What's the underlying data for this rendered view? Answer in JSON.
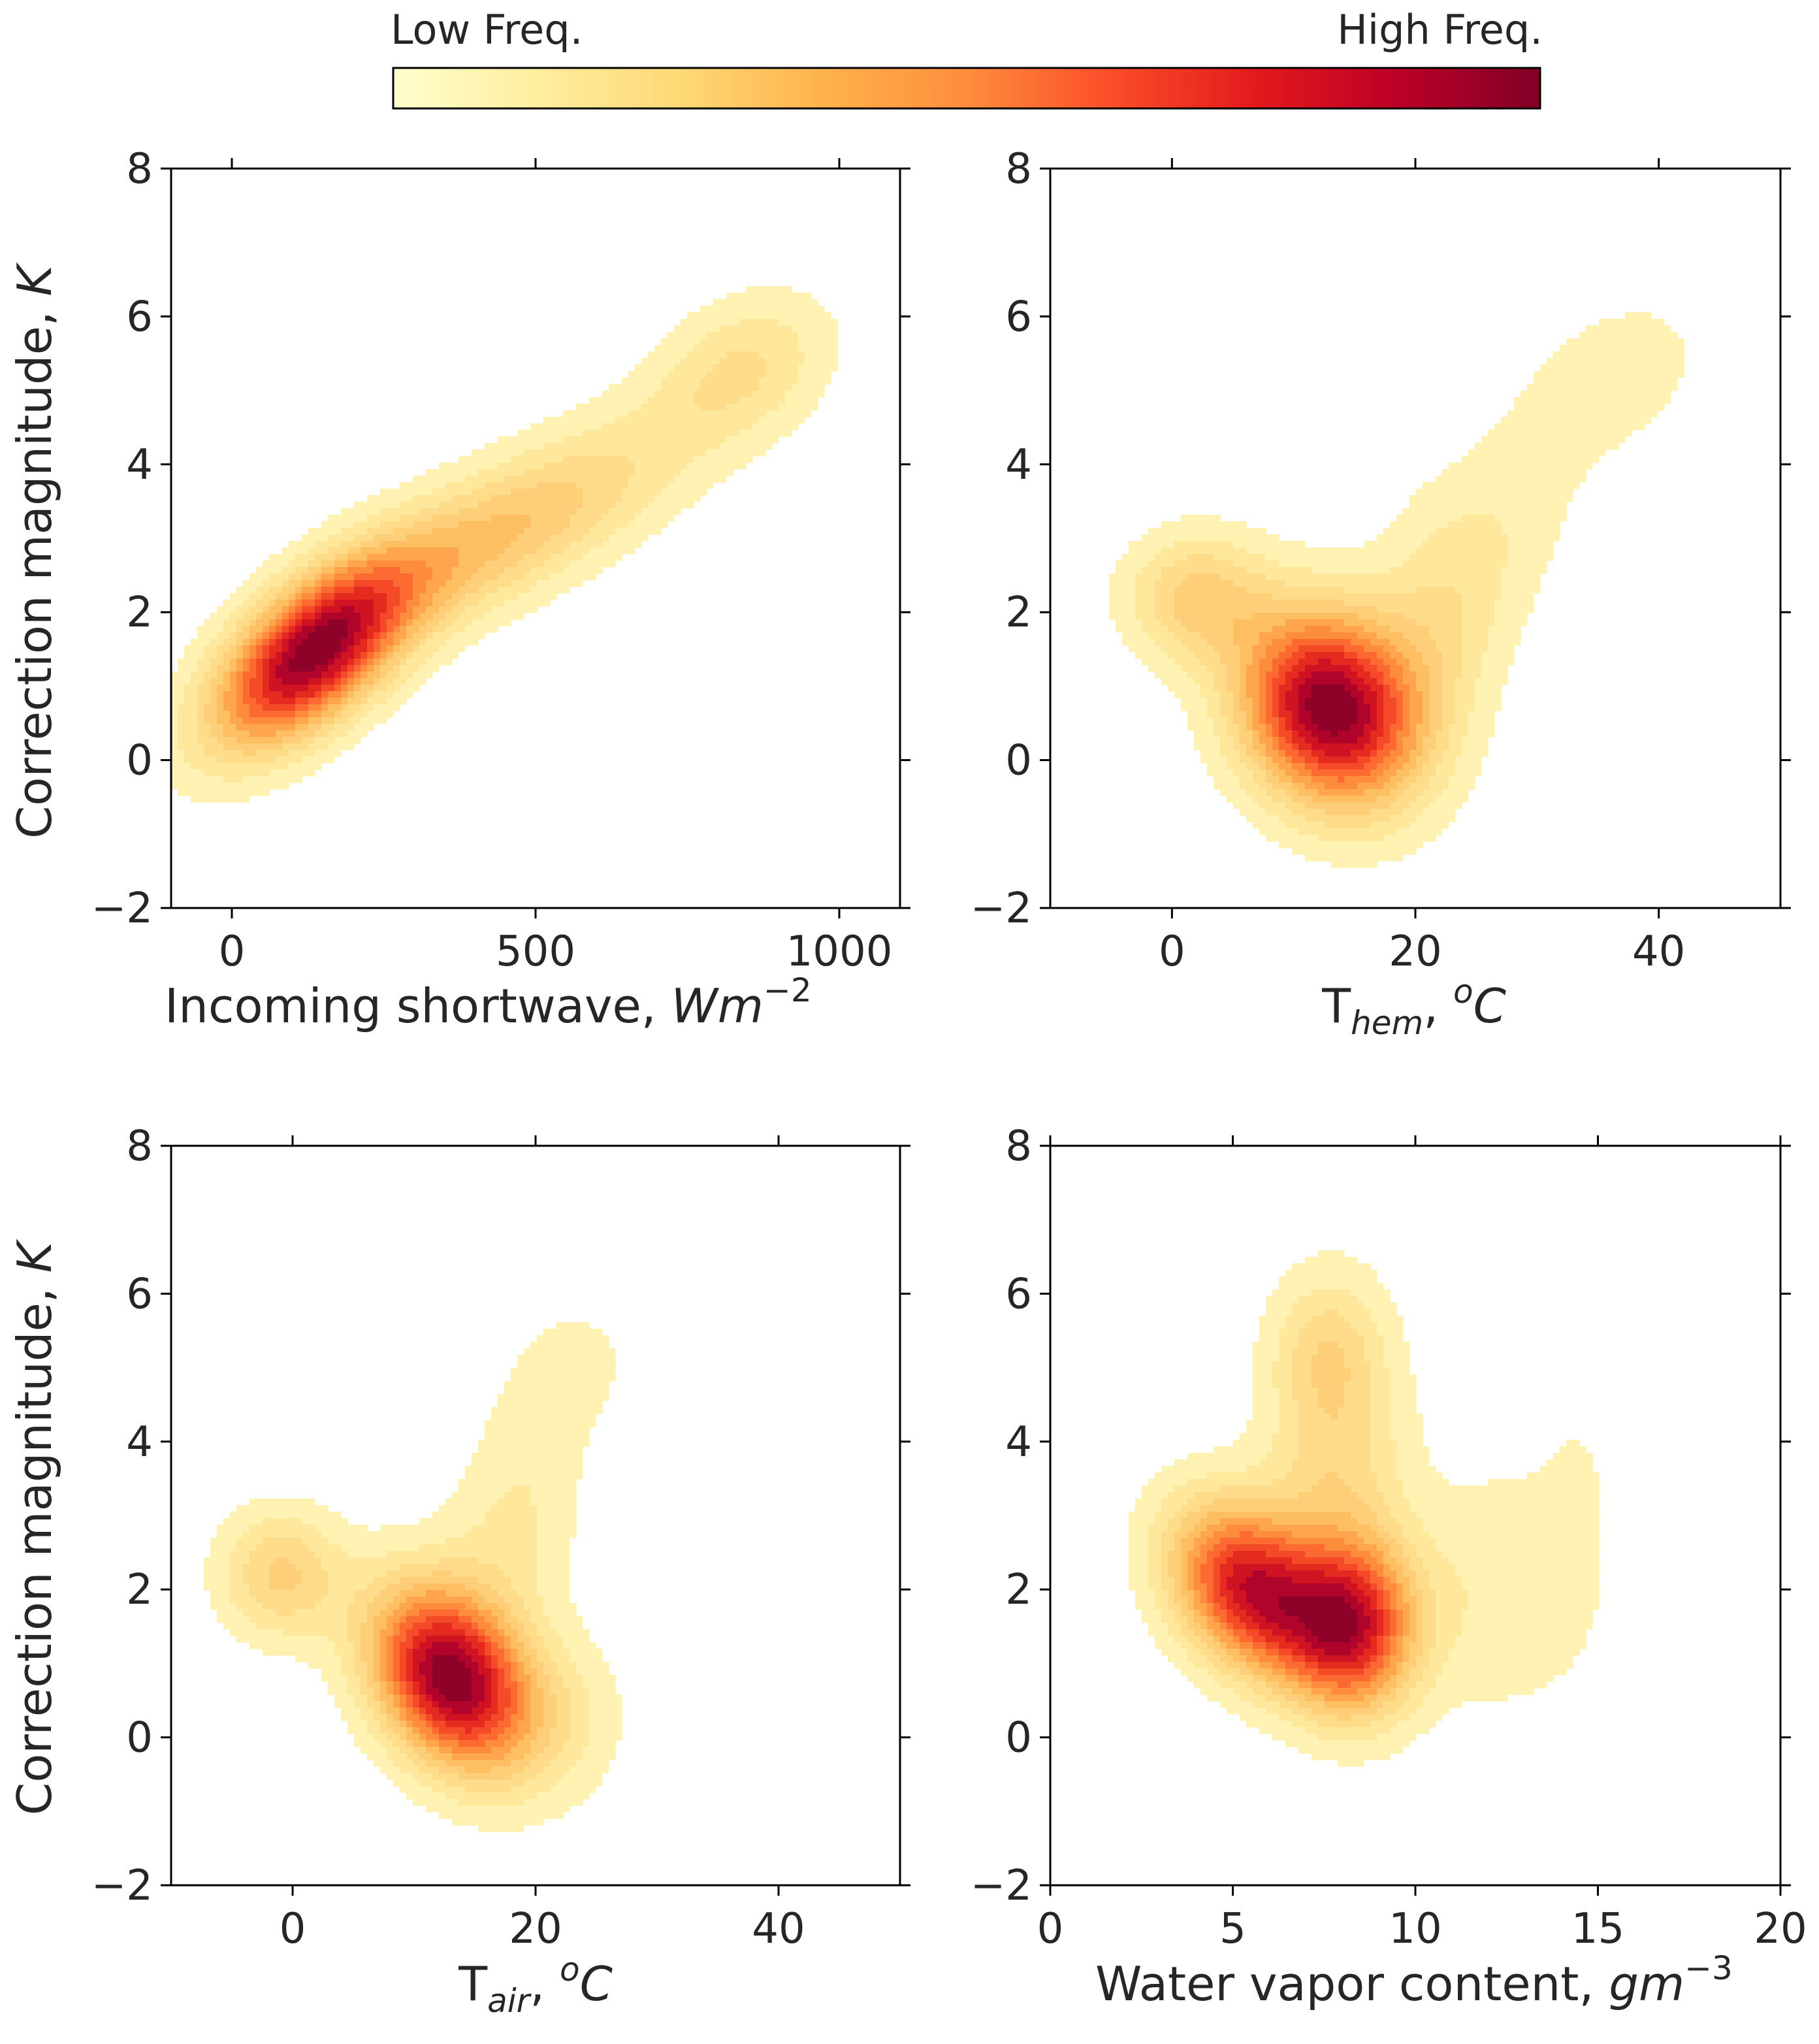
{
  "colorbar": {
    "low_label": "Low Freq.",
    "high_label": "High Freq.",
    "colors": [
      "#ffffcc",
      "#ffeda0",
      "#fed976",
      "#feb24c",
      "#fd8d3c",
      "#fc4e2a",
      "#e31a1c",
      "#bd0026",
      "#800026"
    ]
  },
  "level_colors": [
    "#fff2b3",
    "#ffe79c",
    "#fedc8a",
    "#fecf78",
    "#febf62",
    "#fea54d",
    "#fd8c3c",
    "#fc6a31",
    "#f54a27",
    "#e52a20",
    "#cf1323",
    "#b0042a",
    "#8e0128"
  ],
  "chart_data": [
    {
      "type": "kde_density",
      "title": "",
      "xlabel": "Incoming shortwave, ",
      "xlabel_italic": "Wm",
      "xlabel_sup": "−2",
      "ylabel": "Correction magnitude, ",
      "ylabel_italic": "K",
      "xlim": [
        -100,
        1100
      ],
      "ylim": [
        -2,
        8
      ],
      "xticks": [
        0,
        500,
        1000
      ],
      "xtick_labels": [
        "0",
        "500",
        "1000"
      ],
      "yticks": [
        -2,
        0,
        2,
        4,
        6,
        8
      ],
      "ytick_labels": [
        "−2",
        "0",
        "2",
        "4",
        "6",
        "8"
      ],
      "density_components": [
        {
          "x": 130,
          "y": 1.4,
          "sx": 110,
          "sy": 0.85,
          "rho": 0.6,
          "w": 1.0
        },
        {
          "x": 380,
          "y": 2.8,
          "sx": 180,
          "sy": 0.9,
          "rho": 0.7,
          "w": 0.35
        },
        {
          "x": 840,
          "y": 5.3,
          "sx": 100,
          "sy": 0.7,
          "rho": 0.3,
          "w": 0.22
        },
        {
          "x": 600,
          "y": 3.8,
          "sx": 160,
          "sy": 0.9,
          "rho": 0.6,
          "w": 0.12
        }
      ]
    },
    {
      "type": "kde_density",
      "title": "",
      "xlabel": "T",
      "xlabel_sub": "hem",
      "xlabel_tail": ", ",
      "xlabel_sup_italic": "o",
      "xlabel_italic": "C",
      "ylabel": "",
      "xlim": [
        -10,
        50
      ],
      "ylim": [
        -2,
        8
      ],
      "xticks": [
        0,
        20,
        40
      ],
      "xtick_labels": [
        "0",
        "20",
        "40"
      ],
      "yticks": [
        -2,
        0,
        2,
        4,
        6,
        8
      ],
      "ytick_labels": [
        "−2",
        "0",
        "2",
        "4",
        "6",
        "8"
      ],
      "density_components": [
        {
          "x": 13,
          "y": 0.7,
          "sx": 5,
          "sy": 0.9,
          "rho": -0.15,
          "w": 1.0
        },
        {
          "x": 2,
          "y": 2.2,
          "sx": 4,
          "sy": 0.6,
          "rho": 0.0,
          "w": 0.3
        },
        {
          "x": 22,
          "y": 2.0,
          "sx": 4,
          "sy": 1.2,
          "rho": 0.2,
          "w": 0.18
        },
        {
          "x": 37,
          "y": 5.2,
          "sx": 5,
          "sy": 0.8,
          "rho": 0.3,
          "w": 0.1
        },
        {
          "x": 29,
          "y": 3.5,
          "sx": 4,
          "sy": 1.2,
          "rho": 0.4,
          "w": 0.08
        }
      ]
    },
    {
      "type": "kde_density",
      "title": "",
      "xlabel": "T",
      "xlabel_sub": "air",
      "xlabel_tail": ", ",
      "xlabel_sup_italic": "o",
      "xlabel_italic": "C",
      "ylabel": "Correction magnitude, ",
      "ylabel_italic": "K",
      "xlim": [
        -10,
        50
      ],
      "ylim": [
        -2,
        8
      ],
      "xticks": [
        0,
        20,
        40
      ],
      "xtick_labels": [
        "0",
        "20",
        "40"
      ],
      "yticks": [
        -2,
        0,
        2,
        4,
        6,
        8
      ],
      "ytick_labels": [
        "−2",
        "0",
        "2",
        "4",
        "6",
        "8"
      ],
      "density_components": [
        {
          "x": 13,
          "y": 0.8,
          "sx": 4.5,
          "sy": 0.85,
          "rho": -0.3,
          "w": 1.0
        },
        {
          "x": -1,
          "y": 2.2,
          "sx": 3.5,
          "sy": 0.6,
          "rho": 0.0,
          "w": 0.3
        },
        {
          "x": 18,
          "y": 2.8,
          "sx": 4,
          "sy": 1.2,
          "rho": 0.3,
          "w": 0.15
        },
        {
          "x": 23,
          "y": 5.0,
          "sx": 4,
          "sy": 0.7,
          "rho": 0.2,
          "w": 0.08
        },
        {
          "x": 22,
          "y": 0.3,
          "sx": 4,
          "sy": 0.8,
          "rho": 0.0,
          "w": 0.12
        }
      ]
    },
    {
      "type": "kde_density",
      "title": "",
      "xlabel": "Water vapor content, ",
      "xlabel_italic": "gm",
      "xlabel_sup": "−3",
      "ylabel": "",
      "xlim": [
        0,
        20
      ],
      "ylim": [
        -2,
        8
      ],
      "xticks": [
        0,
        5,
        10,
        15,
        20
      ],
      "xtick_labels": [
        "0",
        "5",
        "10",
        "15",
        "20"
      ],
      "yticks": [
        -2,
        0,
        2,
        4,
        6,
        8
      ],
      "ytick_labels": [
        "−2",
        "0",
        "2",
        "4",
        "6",
        "8"
      ],
      "density_components": [
        {
          "x": 5.5,
          "y": 2.0,
          "sx": 1.5,
          "sy": 0.8,
          "rho": -0.3,
          "w": 1.0
        },
        {
          "x": 8.3,
          "y": 1.5,
          "sx": 1.2,
          "sy": 0.8,
          "rho": 0.0,
          "w": 0.9
        },
        {
          "x": 7.8,
          "y": 4.0,
          "sx": 1.3,
          "sy": 1.4,
          "rho": 0.0,
          "w": 0.3
        },
        {
          "x": 7.5,
          "y": 5.3,
          "sx": 1.0,
          "sy": 0.6,
          "rho": 0.0,
          "w": 0.15
        },
        {
          "x": 12.5,
          "y": 2.0,
          "sx": 2.0,
          "sy": 1.2,
          "rho": 0.0,
          "w": 0.15
        },
        {
          "x": 14.5,
          "y": 3.8,
          "sx": 0.8,
          "sy": 0.9,
          "rho": 0.0,
          "w": 0.05
        }
      ]
    }
  ]
}
